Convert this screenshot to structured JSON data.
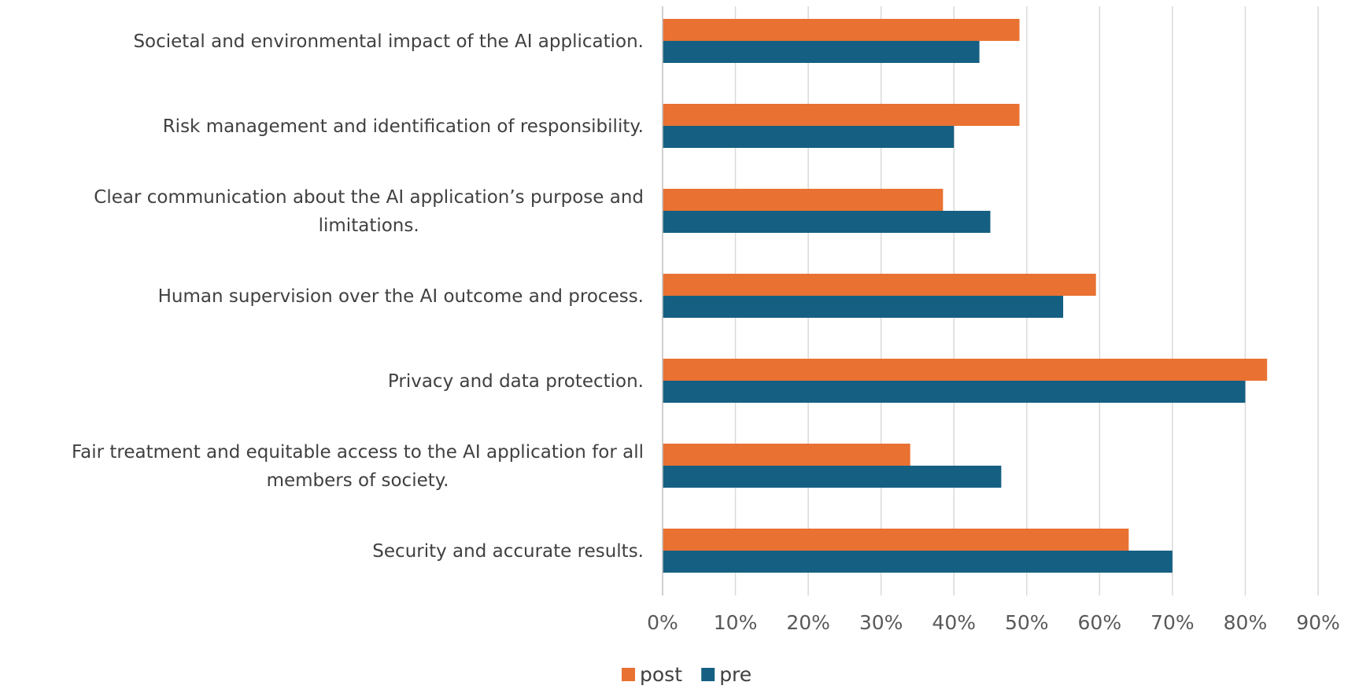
{
  "chart_data": {
    "type": "bar",
    "orientation": "horizontal",
    "title": "",
    "xlabel": "",
    "ylabel": "",
    "xlim": [
      0,
      90
    ],
    "x_ticks": [
      0,
      10,
      20,
      30,
      40,
      50,
      60,
      70,
      80,
      90
    ],
    "x_tick_labels": [
      "0%",
      "10%",
      "20%",
      "30%",
      "40%",
      "50%",
      "60%",
      "70%",
      "80%",
      "90%"
    ],
    "grid": "vertical",
    "legend_position": "bottom",
    "categories": [
      "Societal and environmental impact of the AI application.",
      "Risk management and identification of responsibility.",
      "Clear communication about the AI application’s purpose and limitations.",
      "Human supervision over the AI outcome and process.",
      "Privacy and data protection.",
      "Fair treatment and equitable access to the AI application for all members of society.",
      "Security and accurate results."
    ],
    "category_label_lines": [
      [
        "Societal and environmental impact of the AI application."
      ],
      [
        "Risk management and identification of responsibility."
      ],
      [
        "Clear communication about the AI application’s purpose and",
        "limitations."
      ],
      [
        "Human supervision over the AI outcome and process."
      ],
      [
        "Privacy and data protection."
      ],
      [
        "Fair treatment and equitable access to the AI application for all",
        "members of society."
      ],
      [
        "Security and accurate results."
      ]
    ],
    "series": [
      {
        "name": "post",
        "color": "#E97132",
        "values": [
          49,
          49,
          38.5,
          59.5,
          83,
          34,
          64
        ]
      },
      {
        "name": "pre",
        "color": "#156082",
        "values": [
          43.5,
          40,
          45,
          55,
          80,
          46.5,
          70
        ]
      }
    ]
  },
  "legend": {
    "items": [
      {
        "label": "post",
        "color": "#E97132"
      },
      {
        "label": "pre",
        "color": "#156082"
      }
    ]
  }
}
